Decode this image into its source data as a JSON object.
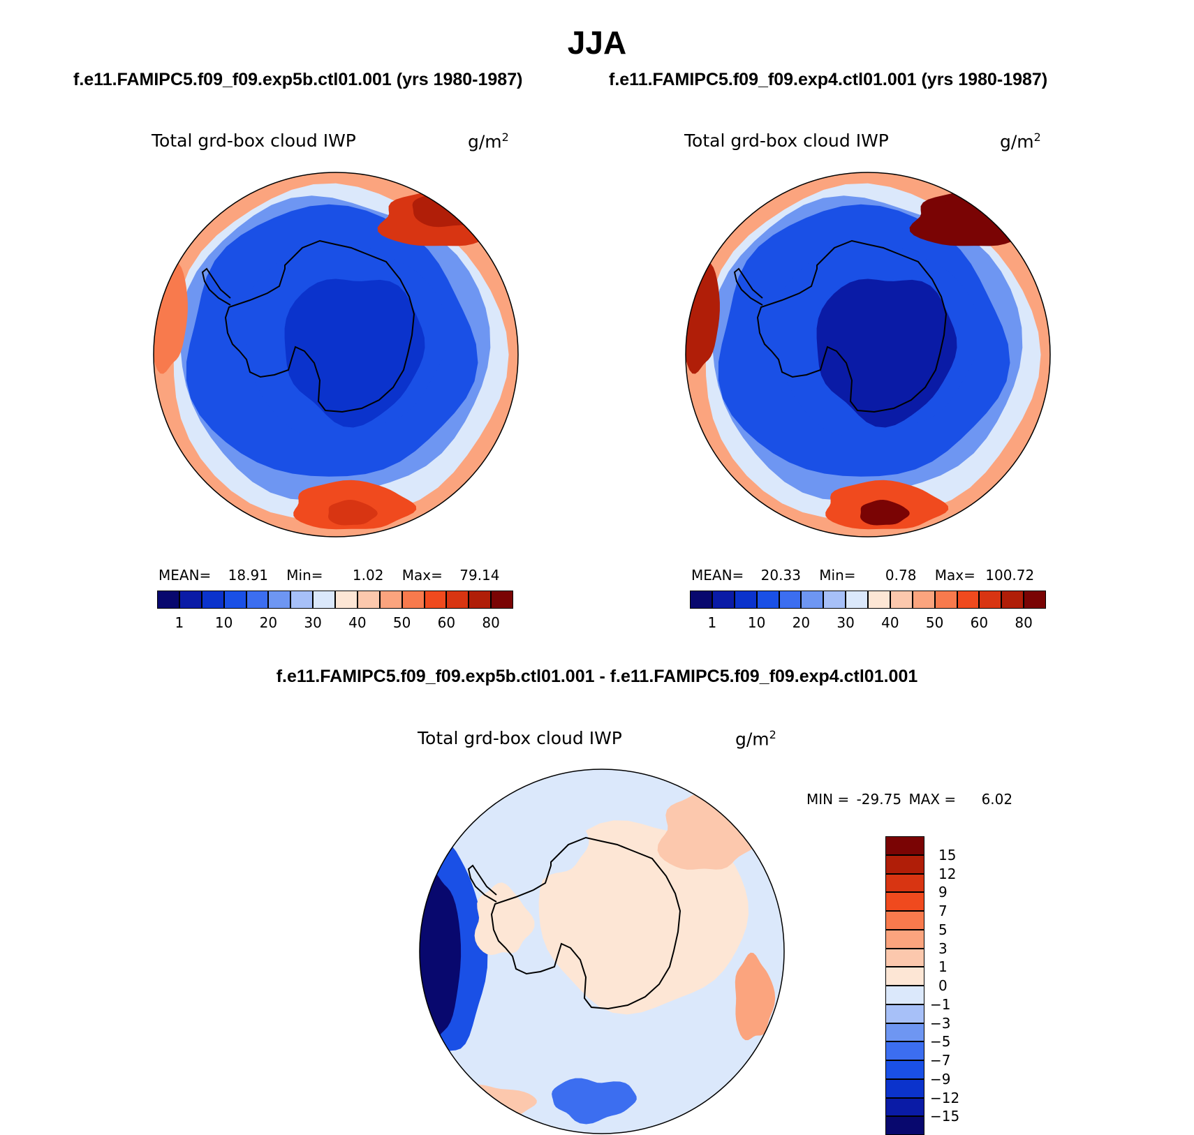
{
  "page": {
    "title": "JJA",
    "case1": "f.e11.FAMIPC5.f09_f09.exp5b.ctl01.001 (yrs 1980-1987)",
    "case2": "f.e11.FAMIPC5.f09_f09.exp4.ctl01.001 (yrs 1980-1987)",
    "diff_title": "f.e11.FAMIPC5.f09_f09.exp5b.ctl01.001 - f.e11.FAMIPC5.f09_f09.exp4.ctl01.001"
  },
  "colors": {
    "abs_scale": [
      "#08086e",
      "#0a1ba6",
      "#0b33cc",
      "#1a50e6",
      "#3c6ef0",
      "#6e96f2",
      "#a7c0f8",
      "#dbe8fb",
      "#fde6d5",
      "#fcc8ad",
      "#fba47e",
      "#f87a4d",
      "#f04a1e",
      "#d83512",
      "#b01e08",
      "#7a0404"
    ],
    "diff_scale": [
      "#08086e",
      "#0a1ba6",
      "#0b33cc",
      "#1a50e6",
      "#3c6ef0",
      "#6e96f2",
      "#a7c0f8",
      "#dbe8fb",
      "#fde6d5",
      "#fcc8ad",
      "#fba47e",
      "#f87a4d",
      "#f04a1e",
      "#d83512",
      "#b01e08",
      "#7a0404"
    ]
  },
  "chart_data": [
    {
      "type": "heatmap",
      "name": "exp5b",
      "variable": "Total grd-box cloud IWP",
      "units": "g/m",
      "units_sup": "2",
      "stats": {
        "mean_label": "MEAN=",
        "mean": "18.91",
        "min_label": "Min=",
        "min": "1.02",
        "max_label": "Max=",
        "max": "79.14"
      },
      "colorbar_levels": [
        "1",
        "10",
        "20",
        "30",
        "40",
        "50",
        "60",
        "80"
      ],
      "field_values": {
        "ice_sheet": 5,
        "inner_ocean": 12,
        "ring": 30,
        "outer": 45,
        "max_patch": 75
      }
    },
    {
      "type": "heatmap",
      "name": "exp4",
      "variable": "Total grd-box cloud IWP",
      "units": "g/m",
      "units_sup": "2",
      "stats": {
        "mean_label": "MEAN=",
        "mean": "20.33",
        "min_label": "Min=",
        "min": "0.78",
        "max_label": "Max=",
        "max": "100.72"
      },
      "colorbar_levels": [
        "1",
        "10",
        "20",
        "30",
        "40",
        "50",
        "60",
        "80"
      ],
      "field_values": {
        "ice_sheet": 4,
        "inner_ocean": 12,
        "ring": 30,
        "outer": 48,
        "max_patch": 95
      }
    },
    {
      "type": "heatmap",
      "name": "difference",
      "variable": "Total grd-box cloud IWP",
      "units": "g/m",
      "units_sup": "2",
      "stats": {
        "min_label": "MIN =",
        "min": "-29.75",
        "max_label": "MAX =",
        "max": "6.02"
      },
      "colorbar_levels": [
        "15",
        "12",
        "9",
        "7",
        "5",
        "3",
        "1",
        "0",
        "-1",
        "-3",
        "-5",
        "-7",
        "-9",
        "-12",
        "-15"
      ],
      "field_values": {
        "ice_sheet": 0.5,
        "ocean": -0.5,
        "west_min": -25,
        "east_max": 4
      }
    }
  ]
}
